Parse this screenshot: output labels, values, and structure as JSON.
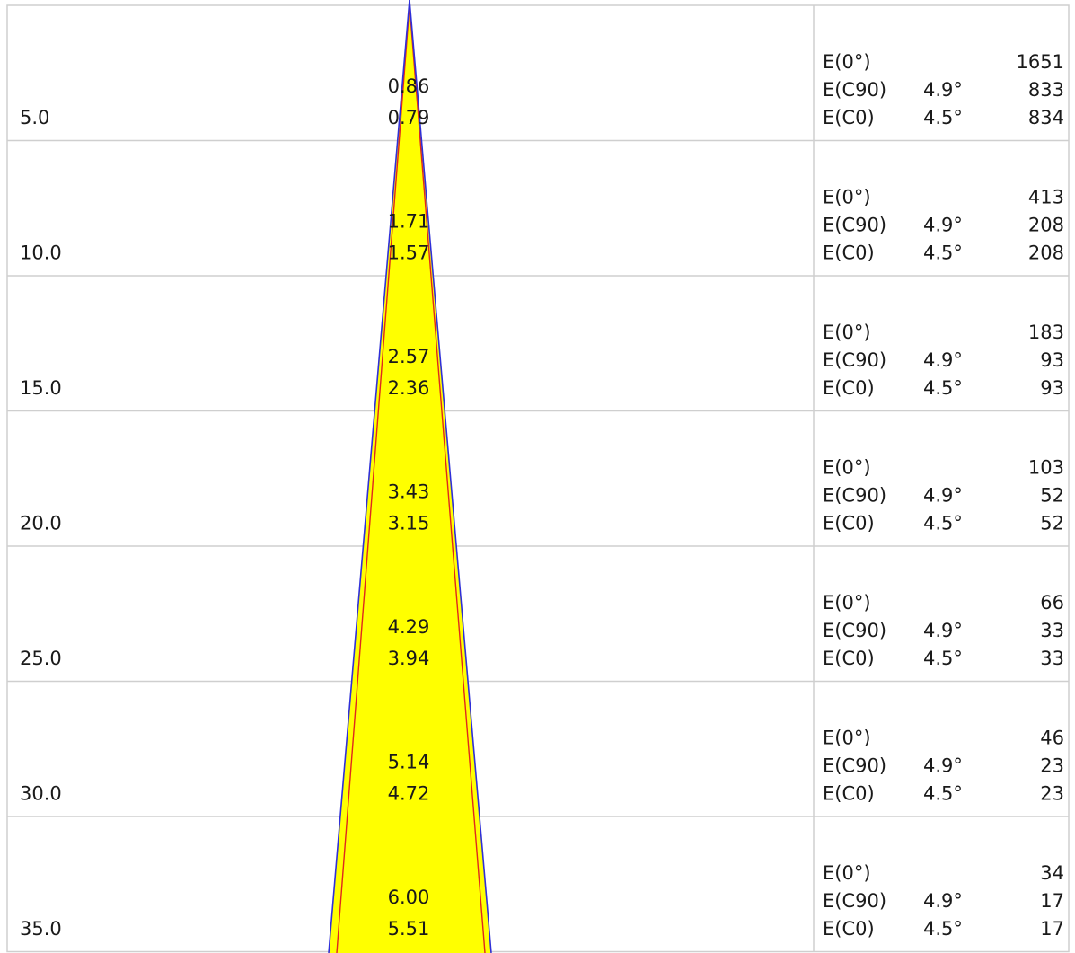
{
  "colors": {
    "cone_fill": "#ffff00",
    "cone_edge": "#2f2fd8",
    "inner_edge": "#e0271e",
    "grid_line": "#cfcfcf",
    "text": "#1a1a1a"
  },
  "rows": [
    {
      "height": "5.0",
      "diameter_c90": "0.86",
      "diameter_c0": "0.79",
      "e_center_label": "E(0°)",
      "e_center_value": "1651",
      "e_c90_label": "E(C90)",
      "e_c90_angle": "4.9°",
      "e_c90_value": "833",
      "e_c0_label": "E(C0)",
      "e_c0_angle": "4.5°",
      "e_c0_value": "834"
    },
    {
      "height": "10.0",
      "diameter_c90": "1.71",
      "diameter_c0": "1.57",
      "e_center_label": "E(0°)",
      "e_center_value": "413",
      "e_c90_label": "E(C90)",
      "e_c90_angle": "4.9°",
      "e_c90_value": "208",
      "e_c0_label": "E(C0)",
      "e_c0_angle": "4.5°",
      "e_c0_value": "208"
    },
    {
      "height": "15.0",
      "diameter_c90": "2.57",
      "diameter_c0": "2.36",
      "e_center_label": "E(0°)",
      "e_center_value": "183",
      "e_c90_label": "E(C90)",
      "e_c90_angle": "4.9°",
      "e_c90_value": "93",
      "e_c0_label": "E(C0)",
      "e_c0_angle": "4.5°",
      "e_c0_value": "93"
    },
    {
      "height": "20.0",
      "diameter_c90": "3.43",
      "diameter_c0": "3.15",
      "e_center_label": "E(0°)",
      "e_center_value": "103",
      "e_c90_label": "E(C90)",
      "e_c90_angle": "4.9°",
      "e_c90_value": "52",
      "e_c0_label": "E(C0)",
      "e_c0_angle": "4.5°",
      "e_c0_value": "52"
    },
    {
      "height": "25.0",
      "diameter_c90": "4.29",
      "diameter_c0": "3.94",
      "e_center_label": "E(0°)",
      "e_center_value": "66",
      "e_c90_label": "E(C90)",
      "e_c90_angle": "4.9°",
      "e_c90_value": "33",
      "e_c0_label": "E(C0)",
      "e_c0_angle": "4.5°",
      "e_c0_value": "33"
    },
    {
      "height": "30.0",
      "diameter_c90": "5.14",
      "diameter_c0": "4.72",
      "e_center_label": "E(0°)",
      "e_center_value": "46",
      "e_c90_label": "E(C90)",
      "e_c90_angle": "4.9°",
      "e_c90_value": "23",
      "e_c0_label": "E(C0)",
      "e_c0_angle": "4.5°",
      "e_c0_value": "23"
    },
    {
      "height": "35.0",
      "diameter_c90": "6.00",
      "diameter_c0": "5.51",
      "e_center_label": "E(0°)",
      "e_center_value": "34",
      "e_c90_label": "E(C90)",
      "e_c90_angle": "4.9°",
      "e_c90_value": "17",
      "e_c0_label": "E(C0)",
      "e_c0_angle": "4.5°",
      "e_c0_value": "17"
    }
  ]
}
